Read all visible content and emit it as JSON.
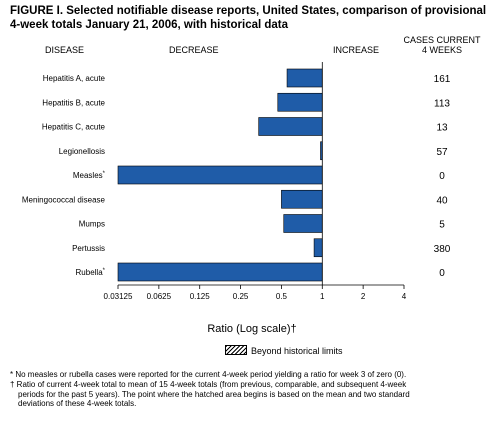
{
  "figure": {
    "title_line1": "FIGURE I. Selected notifiable disease reports, United States, comparison of provisional",
    "title_line2": "4-week totals January 21, 2006, with historical data",
    "header_disease": "DISEASE",
    "header_decrease": "DECREASE",
    "header_increase": "INCREASE",
    "header_cases_line1": "CASES CURRENT",
    "header_cases_line2": "4 WEEKS",
    "legend_label": "Beyond historical limits",
    "footnote1": "* No measles or rubella cases were reported for the current 4-week period yielding a ratio for week 3 of zero (0).",
    "footnote2_line1": "† Ratio of current 4-week total to mean of 15 4-week totals (from previous, comparable, and subsequent 4-week",
    "footnote2_line2": "periods for the past 5 years). The point where the hatched area begins is based on the mean and two standard",
    "footnote2_line3": "deviations of these 4-week totals."
  },
  "chart_data": {
    "type": "bar",
    "orientation": "horizontal",
    "xlabel": "Ratio (Log scale)†",
    "x_scale": "log2",
    "xlim": [
      0.03125,
      4
    ],
    "x_ticks": [
      0.03125,
      0.0625,
      0.125,
      0.25,
      0.5,
      1,
      2,
      4
    ],
    "x_tick_labels": [
      "0.03125",
      "0.0625",
      "0.125",
      "0.25",
      "0.5",
      "1",
      "2",
      "4"
    ],
    "reference_line": 1,
    "bar_color": "#1f5ca8",
    "categories": [
      "Hepatitis A, acute",
      "Hepatitis B, acute",
      "Hepatitis C, acute",
      "Legionellosis",
      "Measles*",
      "Meningococcal disease",
      "Mumps",
      "Pertussis",
      "Rubella*"
    ],
    "ratios": [
      0.55,
      0.47,
      0.34,
      0.97,
      0.03125,
      0.5,
      0.52,
      0.87,
      0.03125
    ],
    "cases_current_4_weeks": [
      "161",
      "113",
      "13",
      "57",
      "0",
      "40",
      "5",
      "380",
      "0"
    ]
  }
}
